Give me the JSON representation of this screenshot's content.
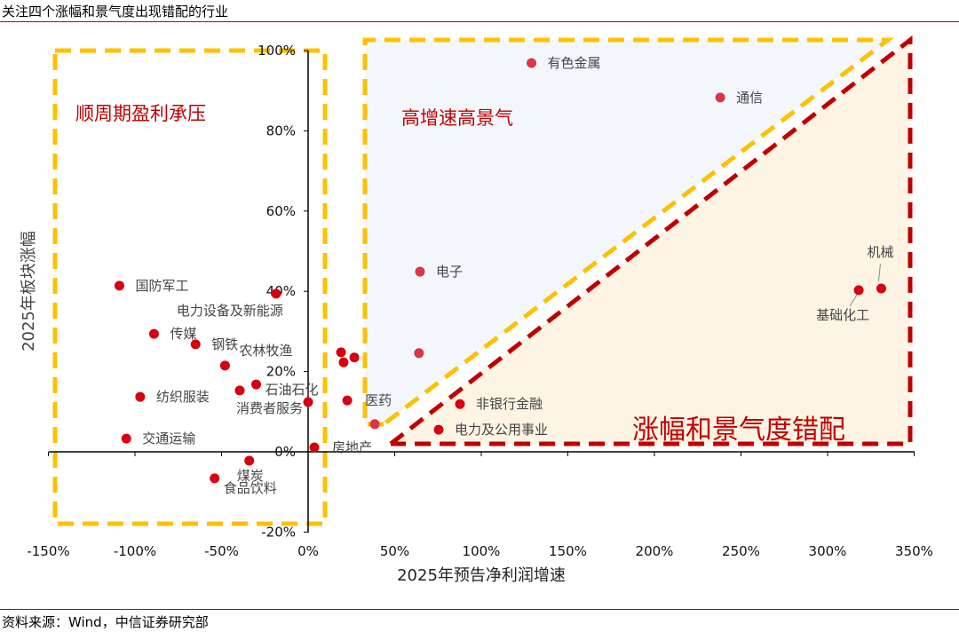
{
  "title": "关注四个涨幅和景气度出现错配的行业",
  "source": "资料来源：Wind，中信证券研究部",
  "colors": {
    "point": "#d7000f",
    "point_light": "#dc3545",
    "yellow": "#ffc000",
    "red": "#c00000",
    "blue_fill": "#f3f7fc",
    "peach_fill": "#fdf4e3"
  },
  "chart_data": {
    "type": "scatter",
    "xlabel": "2025年预告净利润增速",
    "ylabel": "2025年板块涨幅",
    "xlim": [
      -150,
      350
    ],
    "ylim": [
      -20,
      100
    ],
    "x_ticks": [
      "-150%",
      "-100%",
      "-50%",
      "0%",
      "50%",
      "100%",
      "150%",
      "200%",
      "250%",
      "300%",
      "350%"
    ],
    "y_ticks": [
      "-20%",
      "0%",
      "20%",
      "40%",
      "60%",
      "80%",
      "100%"
    ],
    "grid": false,
    "zones": [
      "顺周期盈利承压",
      "高增速高景气",
      "涨幅和景气度错配"
    ],
    "points": [
      {
        "label": "国防军工",
        "x": -109,
        "y": 41.4
      },
      {
        "label": "电力设备及新能源",
        "x": -18.5,
        "y": 39.4
      },
      {
        "label": "传媒",
        "x": -89,
        "y": 29.4
      },
      {
        "label": "钢铁",
        "x": -65,
        "y": 26.8
      },
      {
        "label": "农林牧渔",
        "x": -48,
        "y": 21.5
      },
      {
        "label": "石油石化",
        "x": -30,
        "y": 16.8
      },
      {
        "label": "消费者服务",
        "x": -39.5,
        "y": 15.3
      },
      {
        "label": "纺织服装",
        "x": -97,
        "y": 13.7
      },
      {
        "label": "交通运输",
        "x": -105,
        "y": 3.3
      },
      {
        "label": "煤炭",
        "x": -34,
        "y": -2.2
      },
      {
        "label": "食品饮料",
        "x": -54,
        "y": -6.6
      },
      {
        "label": "",
        "x": 0,
        "y": 12.4
      },
      {
        "label": "房地产",
        "x": 3.6,
        "y": 1.1
      },
      {
        "label": "",
        "x": 19,
        "y": 24.8
      },
      {
        "label": "",
        "x": 20.5,
        "y": 22.3
      },
      {
        "label": "",
        "x": 26.7,
        "y": 23.5
      },
      {
        "label": "医药",
        "x": 22.6,
        "y": 12.8
      },
      {
        "label": "",
        "x": 38.5,
        "y": 6.9,
        "light": true
      },
      {
        "label": "",
        "x": 64,
        "y": 24.6,
        "light": true
      },
      {
        "label": "电子",
        "x": 64.6,
        "y": 44.9,
        "light": true
      },
      {
        "label": "有色金属",
        "x": 129,
        "y": 96.9,
        "light": true
      },
      {
        "label": "通信",
        "x": 238,
        "y": 88.3,
        "light": true
      },
      {
        "label": "机械",
        "x": 331,
        "y": 40.7
      },
      {
        "label": "基础化工",
        "x": 318,
        "y": 40.3
      },
      {
        "label": "非银行金融",
        "x": 87.7,
        "y": 11.9
      },
      {
        "label": "电力及公用事业",
        "x": 75.4,
        "y": 5.5
      }
    ]
  }
}
